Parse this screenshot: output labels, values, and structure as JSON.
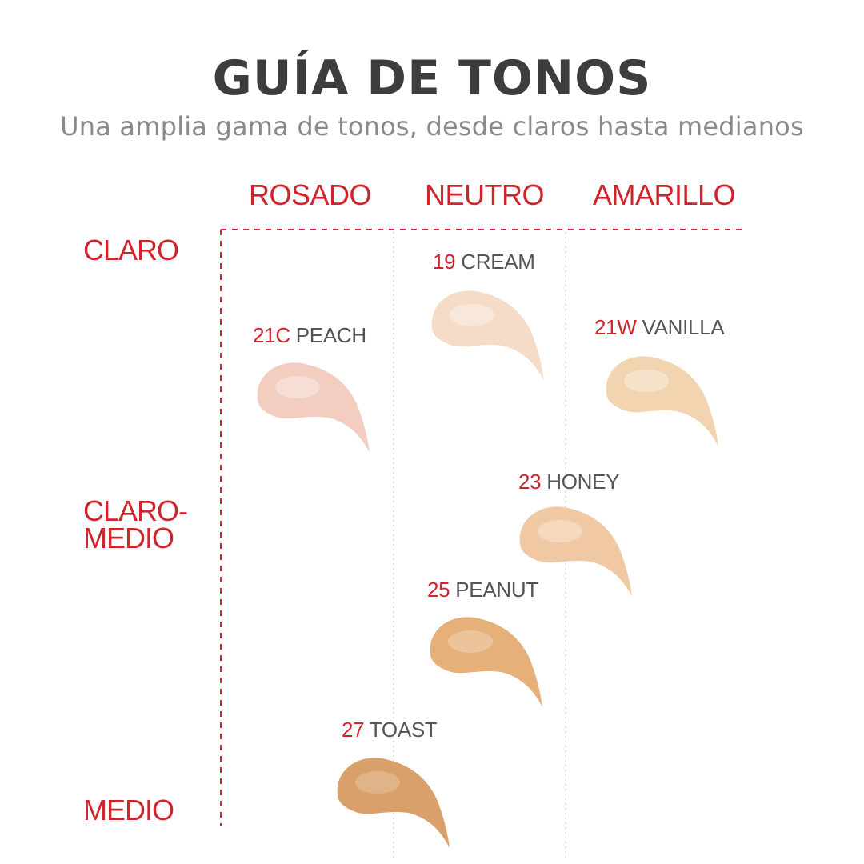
{
  "title": "GUÍA DE TONOS",
  "subtitle": "Una amplia gama de tonos, desde claros hasta medianos",
  "columns": [
    "ROSADO",
    "NEUTRO",
    "AMARILLO"
  ],
  "rows": {
    "claro": "CLARO",
    "claro_medio_line1": "CLARO-",
    "claro_medio_line2": "MEDIO",
    "medio": "MEDIO"
  },
  "accent_color": "#d0242c",
  "shades": [
    {
      "code": "19",
      "name": "CREAM",
      "column": "NEUTRO",
      "color": "#f4dcc8"
    },
    {
      "code": "21C",
      "name": "PEACH",
      "column": "ROSADO",
      "color": "#f3cdbf"
    },
    {
      "code": "21W",
      "name": "VANILLA",
      "column": "AMARILLO",
      "color": "#f2d5b0"
    },
    {
      "code": "23",
      "name": "HONEY",
      "column": "NEUTRO",
      "color": "#f0c9a4"
    },
    {
      "code": "25",
      "name": "PEANUT",
      "column": "NEUTRO",
      "color": "#e6b07a"
    },
    {
      "code": "27",
      "name": "TOAST",
      "column": "ROSADO",
      "color": "#d9a06c"
    }
  ]
}
